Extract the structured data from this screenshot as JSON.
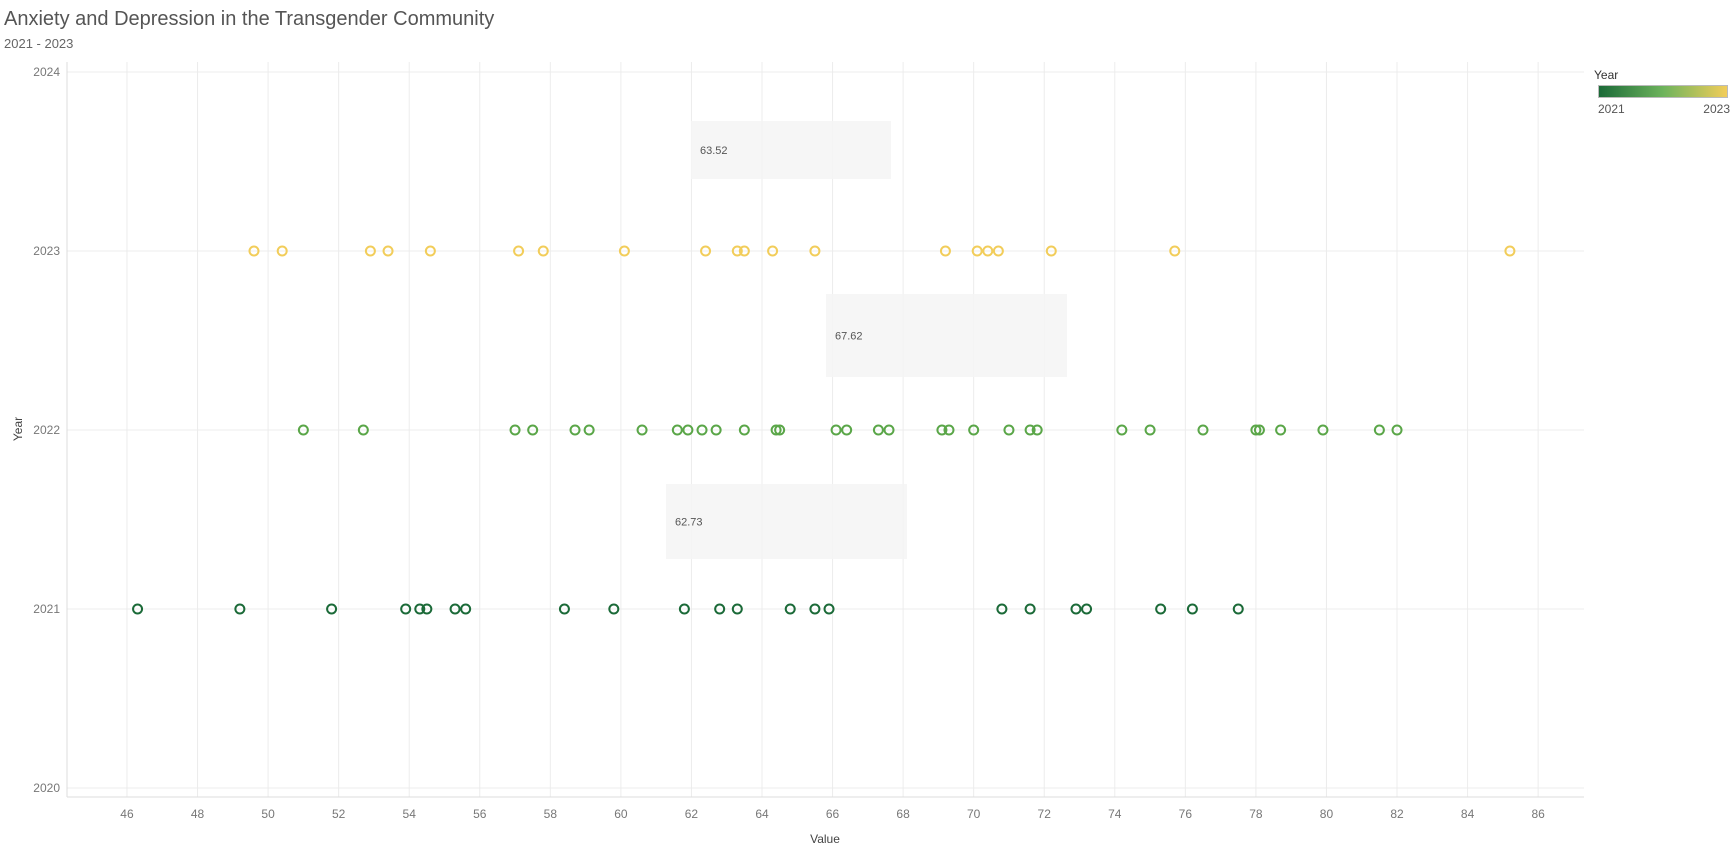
{
  "chart_data": {
    "type": "scatter",
    "title": "Anxiety and Depression in the Transgender Community",
    "subtitle": "2021 - 2023",
    "xlabel": "Value",
    "ylabel": "Year",
    "xlim": [
      44.3,
      87.3
    ],
    "ylim": [
      2020,
      2024
    ],
    "x_ticks": [
      46,
      48,
      50,
      52,
      54,
      56,
      58,
      60,
      62,
      64,
      66,
      68,
      70,
      72,
      74,
      76,
      78,
      80,
      82,
      84,
      86
    ],
    "y_ticks": [
      2020,
      2021,
      2022,
      2023,
      2024
    ],
    "grid": true,
    "legend": {
      "title": "Year",
      "min_label": "2021",
      "max_label": "2023",
      "min_color": "#1b6a38",
      "mid_color": "#6db35c",
      "max_color": "#f2cd5a",
      "position": "top-right"
    },
    "series": [
      {
        "year": 2021,
        "color": "#1b6a38",
        "values": [
          46.3,
          49.2,
          51.8,
          53.9,
          54.3,
          54.5,
          55.3,
          55.6,
          58.4,
          59.8,
          61.8,
          62.8,
          63.3,
          64.8,
          65.5,
          65.9,
          70.8,
          71.6,
          72.9,
          73.2,
          75.3,
          76.2,
          77.5
        ]
      },
      {
        "year": 2022,
        "color": "#5aa648",
        "values": [
          51.0,
          52.7,
          57.0,
          57.5,
          58.7,
          59.1,
          60.6,
          61.6,
          61.9,
          62.3,
          62.7,
          63.5,
          64.4,
          64.5,
          66.1,
          66.4,
          67.3,
          67.6,
          69.1,
          69.3,
          70.0,
          71.0,
          71.6,
          71.8,
          74.2,
          75.0,
          76.5,
          78.0,
          78.1,
          78.7,
          79.9,
          81.5,
          82.0
        ]
      },
      {
        "year": 2023,
        "color": "#f2cd5a",
        "values": [
          49.6,
          50.4,
          52.9,
          53.4,
          54.6,
          57.1,
          57.8,
          60.1,
          62.4,
          63.3,
          63.5,
          64.3,
          65.5,
          69.2,
          70.1,
          70.4,
          70.7,
          72.2,
          75.7,
          85.2
        ]
      }
    ],
    "annotations": [
      {
        "text": "63.52",
        "anchor_year": 2023
      },
      {
        "text": "67.62",
        "anchor_year": 2022
      },
      {
        "text": "62.73",
        "anchor_year": 2021
      }
    ]
  }
}
